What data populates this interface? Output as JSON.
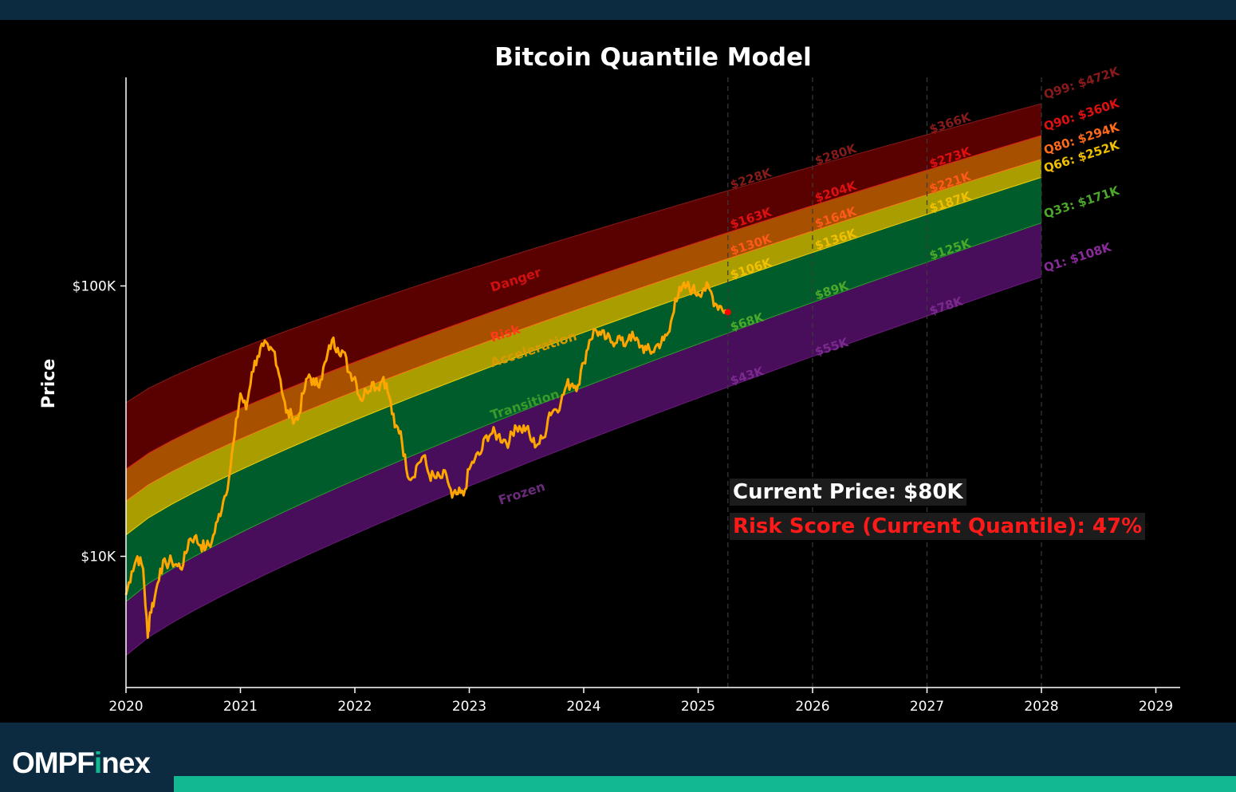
{
  "brand": {
    "prefix": "OMPF",
    "highlight": "i",
    "suffix": "nex"
  },
  "colors": {
    "background": "#000000",
    "header_footer": "#0d2b40",
    "accent": "#12b892",
    "price_line": "#ffa500"
  },
  "current_price_label": "Current Price: $80K",
  "risk_score_label": "Risk Score (Current Quantile): 47%",
  "chart_data": {
    "type": "area",
    "title": "Bitcoin Quantile Model",
    "xlabel": "",
    "ylabel": "Price",
    "y_scale": "log",
    "xlim": [
      2020,
      2029.2
    ],
    "ylim": [
      3500,
      500000
    ],
    "x_ticks": [
      {
        "value": 2020,
        "label": "2020"
      },
      {
        "value": 2021,
        "label": "2021"
      },
      {
        "value": 2022,
        "label": "2022"
      },
      {
        "value": 2023,
        "label": "2023"
      },
      {
        "value": 2024,
        "label": "2024"
      },
      {
        "value": 2025,
        "label": "2025"
      },
      {
        "value": 2026,
        "label": "2026"
      },
      {
        "value": 2027,
        "label": "2027"
      },
      {
        "value": 2028,
        "label": "2028"
      },
      {
        "value": 2029,
        "label": "2029"
      }
    ],
    "y_ticks": [
      {
        "value": 10000,
        "label": "$10K"
      },
      {
        "value": 100000,
        "label": "$100K"
      }
    ],
    "grid": false,
    "vertical_dashed_lines": [
      2025.26,
      2026,
      2027,
      2028
    ],
    "quantile_band_end": 2028,
    "quantiles": [
      {
        "name": "Q1",
        "start_value": 4300,
        "end_value": 108000,
        "color": "#4d0f60"
      },
      {
        "name": "Q33",
        "start_value": 6800,
        "end_value": 171000,
        "color": "#00622d"
      },
      {
        "name": "Q66",
        "start_value": 12000,
        "end_value": 252000,
        "color": "#b3a500"
      },
      {
        "name": "Q80",
        "start_value": 16000,
        "end_value": 294000,
        "color": "#b05400"
      },
      {
        "name": "Q90",
        "start_value": 21000,
        "end_value": 360000,
        "color": "#5e0000"
      },
      {
        "name": "Q99",
        "start_value": 37000,
        "end_value": 472000,
        "color": "#5e0000"
      }
    ],
    "quantile_end_labels": [
      {
        "text": "Q99: $472K",
        "value": 472000,
        "color": "#8a1a1a"
      },
      {
        "text": "Q90: $360K",
        "value": 360000,
        "color": "#e01010"
      },
      {
        "text": "Q80: $294K",
        "value": 294000,
        "color": "#ff6a1a"
      },
      {
        "text": "Q66: $252K",
        "value": 252000,
        "color": "#f0c000"
      },
      {
        "text": "Q33: $171K",
        "value": 171000,
        "color": "#4ca82a"
      },
      {
        "text": "Q1: $108K",
        "value": 108000,
        "color": "#8a2a9c"
      }
    ],
    "checkpoint_labels": [
      {
        "x": 2025.26,
        "items": [
          {
            "text": "$228K",
            "value": 228000,
            "color": "#8a1a1a"
          },
          {
            "text": "$163K",
            "value": 163000,
            "color": "#e01010"
          },
          {
            "text": "$130K",
            "value": 130000,
            "color": "#ff5a1a"
          },
          {
            "text": "$106K",
            "value": 106000,
            "color": "#f0c000"
          },
          {
            "text": "$68K",
            "value": 68000,
            "color": "#4ca82a"
          },
          {
            "text": "$43K",
            "value": 43000,
            "color": "#7a2a8c"
          }
        ]
      },
      {
        "x": 2026,
        "items": [
          {
            "text": "$280K",
            "value": 280000,
            "color": "#8a1a1a"
          },
          {
            "text": "$204K",
            "value": 204000,
            "color": "#e01010"
          },
          {
            "text": "$164K",
            "value": 164000,
            "color": "#ff5a1a"
          },
          {
            "text": "$136K",
            "value": 136000,
            "color": "#f0c000"
          },
          {
            "text": "$89K",
            "value": 89000,
            "color": "#4ca82a"
          },
          {
            "text": "$55K",
            "value": 55000,
            "color": "#7a2a8c"
          }
        ]
      },
      {
        "x": 2027,
        "items": [
          {
            "text": "$366K",
            "value": 366000,
            "color": "#8a1a1a"
          },
          {
            "text": "$273K",
            "value": 273000,
            "color": "#e01010"
          },
          {
            "text": "$221K",
            "value": 221000,
            "color": "#ff5a1a"
          },
          {
            "text": "$187K",
            "value": 187000,
            "color": "#f0c000"
          },
          {
            "text": "$125K",
            "value": 125000,
            "color": "#4ca82a"
          },
          {
            "text": "$78K",
            "value": 78000,
            "color": "#7a2a8c"
          }
        ]
      }
    ],
    "zone_labels": [
      {
        "text": "Danger",
        "x": 2023.2,
        "value": 95000,
        "color": "#d01010"
      },
      {
        "text": "Risk",
        "x": 2023.2,
        "value": 62000,
        "color": "#ff3a1a"
      },
      {
        "text": "Acceleration",
        "x": 2023.2,
        "value": 50000,
        "color": "#d89a00"
      },
      {
        "text": "Transition",
        "x": 2023.2,
        "value": 32000,
        "color": "#3a9a2a"
      },
      {
        "text": "Frozen",
        "x": 2023.27,
        "value": 15500,
        "color": "#6a2a7a"
      }
    ],
    "series": [
      {
        "name": "",
        "x": [
          2020.0,
          2020.05,
          2020.1,
          2020.15,
          2020.19,
          2020.21,
          2020.25,
          2020.3,
          2020.35,
          2020.4,
          2020.45,
          2020.5,
          2020.55,
          2020.6,
          2020.65,
          2020.7,
          2020.75,
          2020.8,
          2020.85,
          2020.9,
          2020.95,
          2021.0,
          2021.05,
          2021.1,
          2021.15,
          2021.2,
          2021.25,
          2021.3,
          2021.35,
          2021.4,
          2021.45,
          2021.5,
          2021.55,
          2021.6,
          2021.65,
          2021.7,
          2021.75,
          2021.8,
          2021.85,
          2021.9,
          2021.95,
          2022.0,
          2022.05,
          2022.1,
          2022.15,
          2022.2,
          2022.25,
          2022.3,
          2022.35,
          2022.4,
          2022.45,
          2022.5,
          2022.55,
          2022.6,
          2022.65,
          2022.7,
          2022.75,
          2022.8,
          2022.85,
          2022.9,
          2022.95,
          2023.0,
          2023.05,
          2023.1,
          2023.15,
          2023.2,
          2023.25,
          2023.3,
          2023.35,
          2023.4,
          2023.45,
          2023.5,
          2023.55,
          2023.6,
          2023.65,
          2023.7,
          2023.75,
          2023.8,
          2023.85,
          2023.9,
          2023.95,
          2024.0,
          2024.05,
          2024.1,
          2024.15,
          2024.2,
          2024.25,
          2024.3,
          2024.35,
          2024.4,
          2024.45,
          2024.5,
          2024.55,
          2024.6,
          2024.65,
          2024.7,
          2024.75,
          2024.8,
          2024.85,
          2024.9,
          2024.95,
          2025.0,
          2025.05,
          2025.1,
          2025.15,
          2025.2,
          2025.25
        ],
        "values": [
          7200,
          8800,
          10000,
          9000,
          5000,
          6200,
          7000,
          9000,
          9400,
          9600,
          9200,
          9300,
          11500,
          11800,
          11000,
          10800,
          11300,
          13500,
          16000,
          19500,
          28000,
          40000,
          35000,
          48000,
          55000,
          60000,
          58000,
          57000,
          45000,
          34000,
          33000,
          32000,
          40000,
          47000,
          43000,
          45000,
          53000,
          63000,
          59000,
          57000,
          48000,
          46000,
          38000,
          41000,
          44000,
          42000,
          46000,
          39000,
          30000,
          29000,
          21000,
          19500,
          22000,
          23500,
          20000,
          19500,
          19500,
          20000,
          16500,
          17000,
          16800,
          21000,
          23000,
          24000,
          28000,
          28500,
          28000,
          27000,
          26500,
          30500,
          29500,
          29800,
          26500,
          26000,
          27500,
          34000,
          35000,
          37000,
          43000,
          43500,
          43000,
          52000,
          63000,
          69000,
          66000,
          64000,
          62000,
          65000,
          60000,
          66000,
          63000,
          60000,
          58000,
          57000,
          61000,
          63000,
          68000,
          90000,
          96000,
          100000,
          97000,
          94000,
          98000,
          97000,
          86000,
          84000,
          80000
        ]
      }
    ],
    "current_point": {
      "x": 2025.26,
      "value": 80000,
      "color": "#ff0000"
    }
  }
}
